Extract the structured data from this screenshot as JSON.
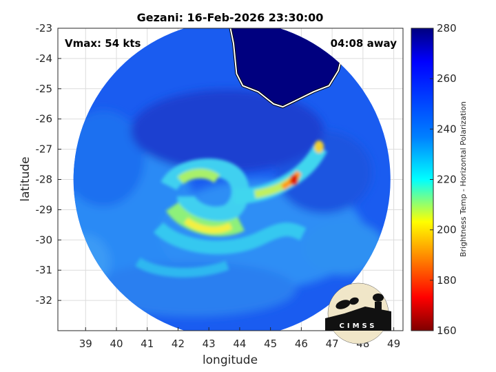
{
  "title": "Gezani: 16-Feb-2026 23:30:00",
  "annotations": {
    "vmax": "Vmax: 54 kts",
    "time_away": "04:08 away"
  },
  "logo_text": "CIMSS",
  "chart_data": {
    "type": "heatmap",
    "title": "Gezani: 16-Feb-2026 23:30:00",
    "xlabel": "longitude",
    "ylabel": "latitude",
    "xlim": [
      38.1,
      49.3
    ],
    "ylim": [
      -33.0,
      -23.0
    ],
    "xticks": [
      39,
      40,
      41,
      42,
      43,
      44,
      45,
      46,
      47,
      48,
      49
    ],
    "yticks": [
      -23,
      -24,
      -25,
      -26,
      -27,
      -28,
      -29,
      -30,
      -31,
      -32
    ],
    "grid": true,
    "colorbar": {
      "label": "Brightness Temp - Horizontal Polarization",
      "range": [
        160,
        280
      ],
      "ticks": [
        160,
        180,
        200,
        220,
        240,
        260,
        280
      ],
      "colormap": "jet",
      "colors": [
        "#7f0000",
        "#ff0000",
        "#ff8000",
        "#ffff00",
        "#80ff80",
        "#00ffff",
        "#0080ff",
        "#0000ff",
        "#00007f"
      ]
    },
    "swath": {
      "center_lon": 43.75,
      "center_lat": -28.0,
      "radius_deg": 5.5
    },
    "features": [
      {
        "label": "cold band (curved rainband)",
        "lon": 45.8,
        "lat": -28.0,
        "value": 185
      },
      {
        "label": "band tip",
        "lon": 46.6,
        "lat": -26.9,
        "value": 205
      },
      {
        "label": "inner core arc",
        "lon": 42.5,
        "lat": -29.8,
        "value": 210
      },
      {
        "label": "land (warm)",
        "lon": 46.0,
        "lat": -23.8,
        "value": 278
      }
    ],
    "coastline": [
      [
        43.7,
        -23.0
      ],
      [
        43.8,
        -23.5
      ],
      [
        43.9,
        -24.5
      ],
      [
        44.1,
        -24.9
      ],
      [
        44.6,
        -25.1
      ],
      [
        45.1,
        -25.5
      ],
      [
        45.4,
        -25.6
      ],
      [
        45.8,
        -25.4
      ],
      [
        46.4,
        -25.1
      ],
      [
        46.9,
        -24.9
      ],
      [
        47.2,
        -24.4
      ],
      [
        47.4,
        -23.6
      ],
      [
        47.6,
        -23.0
      ]
    ]
  },
  "colors": {
    "land": "#00007f",
    "background": "#0050ff"
  }
}
